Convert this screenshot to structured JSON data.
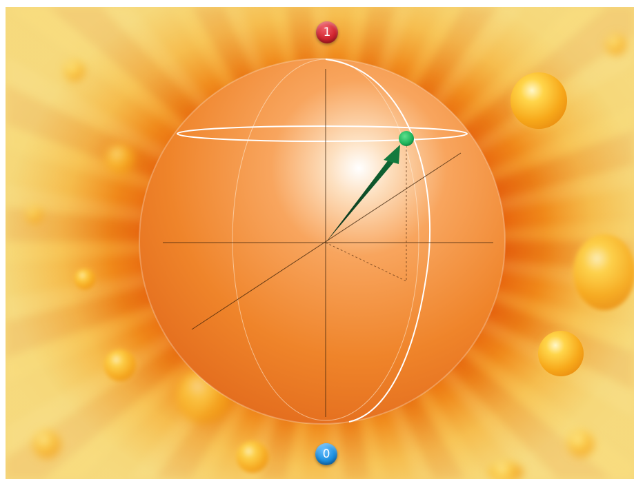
{
  "poles": {
    "top_label": "1",
    "bottom_label": "0"
  },
  "colors": {
    "top_pole": "#d1242f",
    "bottom_pole": "#1b8fe0",
    "state_marker": "#1fb35a",
    "sphere": "#f08a2a",
    "background": "#e8670f"
  }
}
